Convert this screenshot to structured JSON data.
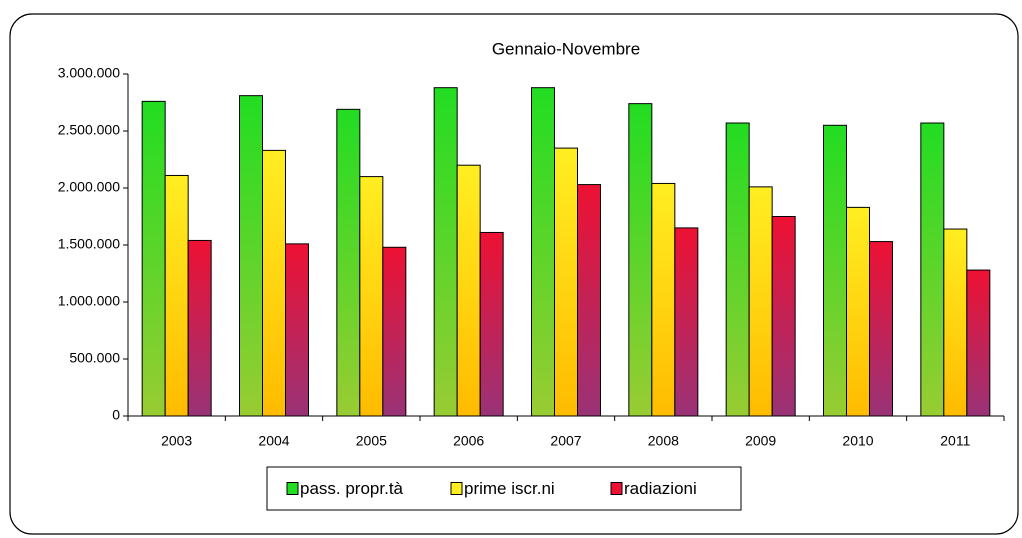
{
  "chart_data": {
    "type": "bar",
    "title": "Gennaio-Novembre",
    "categories": [
      "2003",
      "2004",
      "2005",
      "2006",
      "2007",
      "2008",
      "2009",
      "2010",
      "2011"
    ],
    "series": [
      {
        "name": "pass. propr.tà",
        "color": "#22dd22",
        "values": [
          2760000,
          2810000,
          2690000,
          2880000,
          2880000,
          2740000,
          2570000,
          2550000,
          2570000
        ]
      },
      {
        "name": "prime iscr.ni",
        "color": "#ffee22",
        "values": [
          2110000,
          2330000,
          2100000,
          2200000,
          2350000,
          2040000,
          2010000,
          1830000,
          1640000
        ]
      },
      {
        "name": "radiazioni",
        "color": "#ee1133",
        "values": [
          1540000,
          1510000,
          1480000,
          1610000,
          2030000,
          1650000,
          1750000,
          1530000,
          1280000
        ]
      }
    ],
    "ylim": [
      0,
      3000000
    ],
    "yticks": [
      0,
      {
        "value": 500000,
        "label": "500.000"
      },
      {
        "value": 1000000,
        "label": "1.000.000"
      },
      {
        "value": 1500000,
        "label": "1.500.000"
      },
      {
        "value": 2000000,
        "label": "2.000.000"
      },
      {
        "value": 2500000,
        "label": "2.500.000"
      },
      {
        "value": 3000000,
        "label": "3.000.000"
      }
    ],
    "grid": false,
    "legend": "bottom"
  }
}
